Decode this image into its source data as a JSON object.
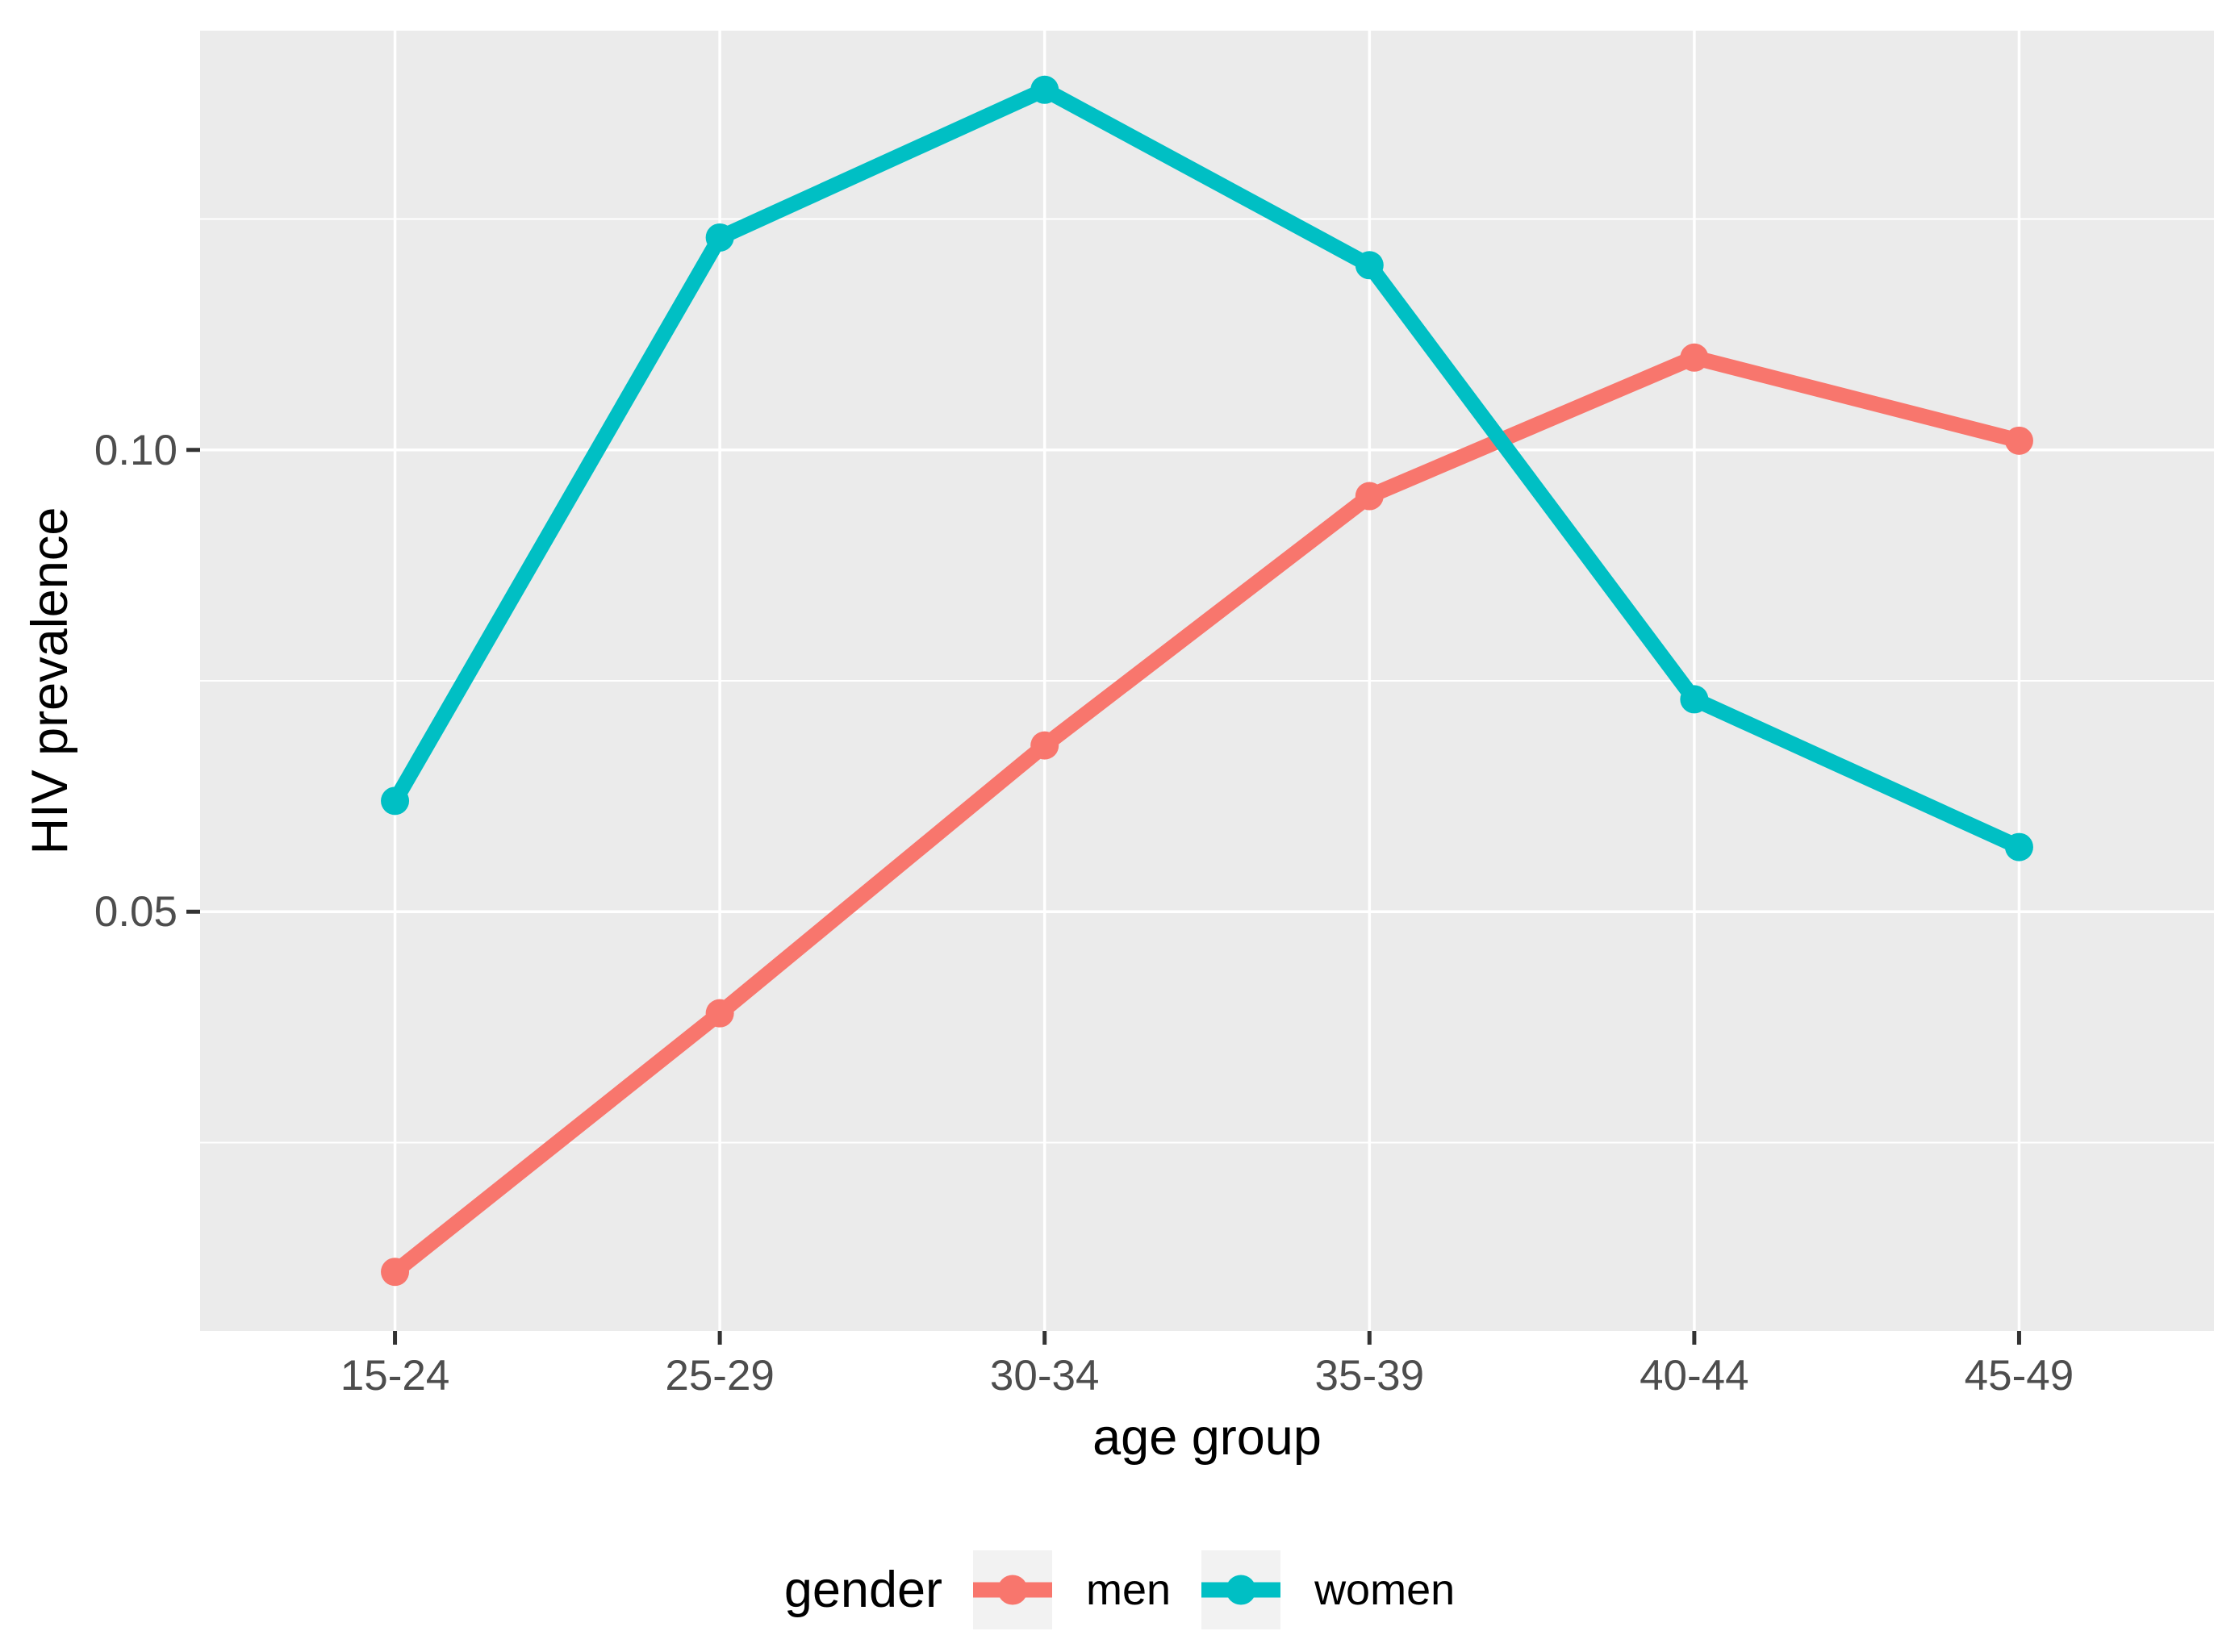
{
  "chart_data": {
    "type": "line",
    "title": "",
    "xlabel": "age group",
    "ylabel": "HIV prevalence",
    "categories": [
      "15-24",
      "25-29",
      "30-34",
      "35-39",
      "40-44",
      "45-49"
    ],
    "series": [
      {
        "name": "men",
        "color": "#F8766D",
        "values": [
          0.011,
          0.039,
          0.068,
          0.095,
          0.11,
          0.101
        ]
      },
      {
        "name": "women",
        "color": "#00BFC4",
        "values": [
          0.062,
          0.123,
          0.139,
          0.12,
          0.073,
          0.057
        ]
      }
    ],
    "ylim": [
      0.0046,
      0.1454
    ],
    "y_ticks": [
      {
        "label": "0.05",
        "value": 0.05
      },
      {
        "label": "0.10",
        "value": 0.1
      }
    ],
    "y_minor_ticks": [
      0.025,
      0.075,
      0.125
    ],
    "grid": true,
    "legend": {
      "title": "gender",
      "position": "bottom",
      "entries": [
        "men",
        "women"
      ]
    },
    "colors": {
      "panel_bg": "#EBEBEB",
      "grid": "#FFFFFF",
      "tick_text": "#4D4D4D",
      "axis_title": "#000000",
      "tick_mark": "#333333",
      "legend_key_bg": "#F2F2F2"
    }
  }
}
